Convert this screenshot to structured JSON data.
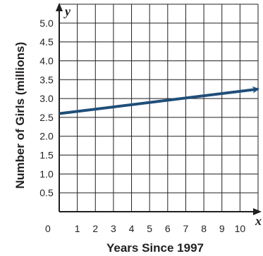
{
  "chart_data": {
    "type": "line",
    "title": "",
    "xlabel": "Years Since 1997",
    "ylabel": "Number of Girls (millions)",
    "x_axis_letter": "x",
    "y_axis_letter": "y",
    "origin_label": "0",
    "xlim": [
      0,
      11
    ],
    "ylim": [
      0,
      5.5
    ],
    "x_ticks": [
      1,
      2,
      3,
      4,
      5,
      6,
      7,
      8,
      9,
      10
    ],
    "x_tick_labels": [
      "1",
      "2",
      "3",
      "4",
      "5",
      "6",
      "7",
      "8",
      "9",
      "10"
    ],
    "y_ticks": [
      0.5,
      1.0,
      1.5,
      2.0,
      2.5,
      3.0,
      3.5,
      4.0,
      4.5,
      5.0
    ],
    "y_tick_labels": [
      "0.5",
      "1.0",
      "1.5",
      "2.0",
      "2.5",
      "3.0",
      "3.5",
      "4.0",
      "4.5",
      "5.0"
    ],
    "grid": true,
    "series": [
      {
        "x": [
          0,
          11
        ],
        "y": [
          2.6,
          3.25
        ],
        "color": "#1f4e79",
        "arrow_end": true
      }
    ]
  }
}
